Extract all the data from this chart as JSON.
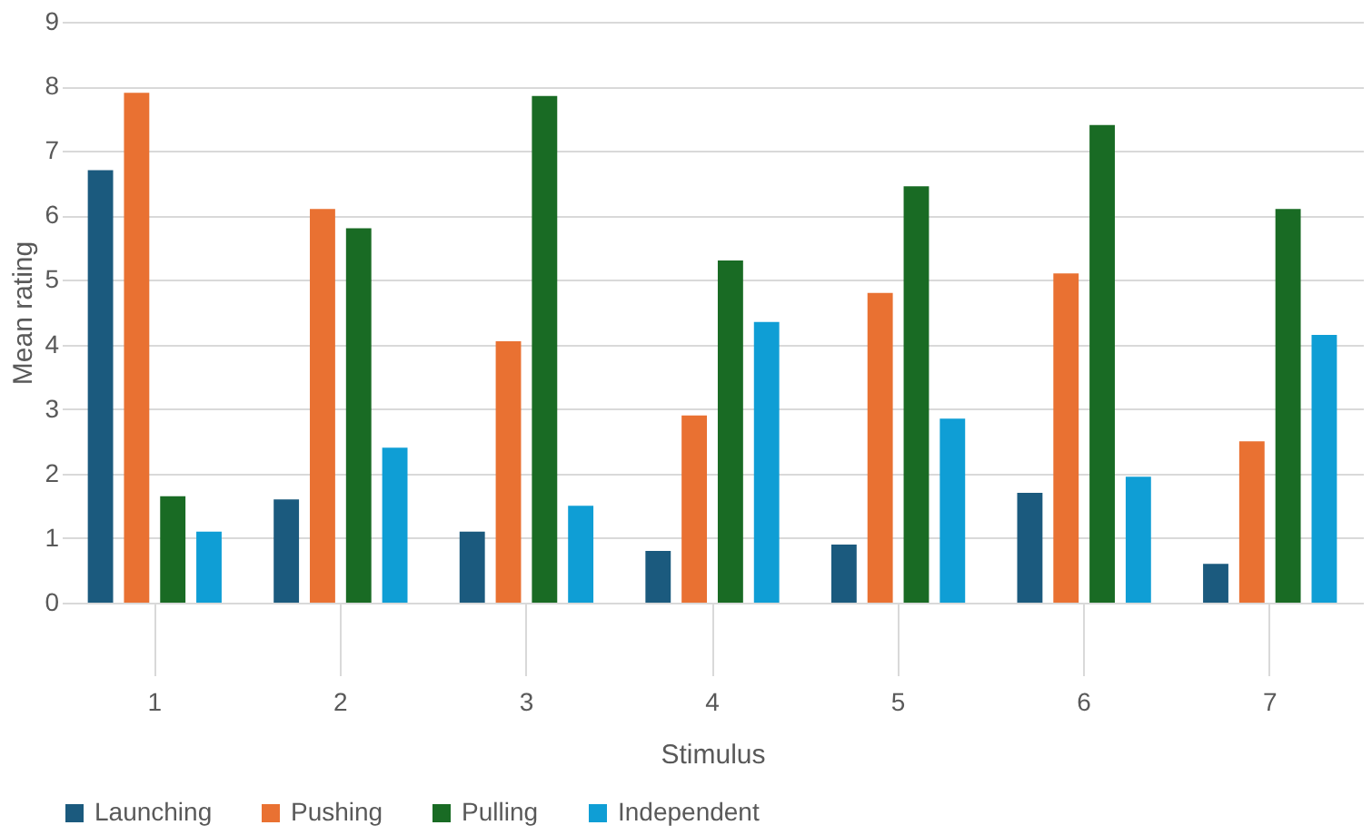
{
  "chart_data": {
    "type": "bar",
    "xlabel": "Stimulus",
    "ylabel": "Mean rating",
    "categories": [
      "1",
      "2",
      "3",
      "4",
      "5",
      "6",
      "7"
    ],
    "series": [
      {
        "name": "Launching",
        "color": "#1b5a7e",
        "values": [
          6.7,
          1.6,
          1.1,
          0.8,
          0.9,
          1.7,
          0.6
        ]
      },
      {
        "name": "Pushing",
        "color": "#e97132",
        "values": [
          7.9,
          6.1,
          4.05,
          2.9,
          4.8,
          5.1,
          2.5
        ]
      },
      {
        "name": "Pulling",
        "color": "#196b24",
        "values": [
          1.65,
          5.8,
          7.85,
          5.3,
          6.45,
          7.4,
          6.1
        ]
      },
      {
        "name": "Independent",
        "color": "#0f9ed5",
        "values": [
          1.1,
          2.4,
          1.5,
          4.35,
          2.85,
          1.95,
          4.15
        ]
      }
    ],
    "ylim": [
      0,
      9
    ],
    "yticks": [
      0,
      1,
      2,
      3,
      4,
      5,
      6,
      7,
      8,
      9
    ],
    "grid": "y",
    "legend": "bottom"
  }
}
